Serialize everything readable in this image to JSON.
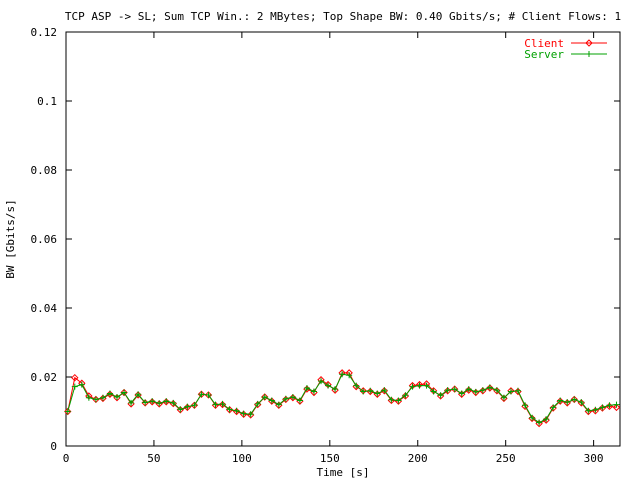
{
  "chart_data": {
    "type": "line",
    "title": "TCP ASP -> SL; Sum TCP Win.: 2 MBytes; Top Shape BW: 0.40 Gbits/s; # Client Flows: 1",
    "xlabel": "Time [s]",
    "ylabel": "BW [Gbits/s]",
    "xlim": [
      0,
      315
    ],
    "ylim": [
      0,
      0.12
    ],
    "xticks": [
      0,
      50,
      100,
      150,
      200,
      250,
      300
    ],
    "yticks": [
      0,
      0.02,
      0.04,
      0.06,
      0.08,
      0.1,
      0.12
    ],
    "xtick_labels": [
      "0",
      "50",
      "100",
      "150",
      "200",
      "250",
      "300"
    ],
    "ytick_labels": [
      "0",
      "0.02",
      "0.04",
      "0.06",
      "0.08",
      "0.1",
      "0.12"
    ],
    "legend_position": "top-right",
    "grid": false,
    "x": [
      1,
      5,
      9,
      13,
      17,
      21,
      25,
      29,
      33,
      37,
      41,
      45,
      49,
      53,
      57,
      61,
      65,
      69,
      73,
      77,
      81,
      85,
      89,
      93,
      97,
      101,
      105,
      109,
      113,
      117,
      121,
      125,
      129,
      133,
      137,
      141,
      145,
      149,
      153,
      157,
      161,
      165,
      169,
      173,
      177,
      181,
      185,
      189,
      193,
      197,
      201,
      205,
      209,
      213,
      217,
      221,
      225,
      229,
      233,
      237,
      241,
      245,
      249,
      253,
      257,
      261,
      265,
      269,
      273,
      277,
      281,
      285,
      289,
      293,
      297,
      301,
      305,
      309,
      313
    ],
    "series": [
      {
        "name": "Client",
        "color": "#ff0000",
        "marker": "diamond",
        "values": [
          0.01,
          0.0198,
          0.0182,
          0.0145,
          0.0135,
          0.0138,
          0.015,
          0.014,
          0.0155,
          0.0122,
          0.0148,
          0.0125,
          0.0128,
          0.0122,
          0.0128,
          0.0123,
          0.0105,
          0.0112,
          0.0118,
          0.015,
          0.0148,
          0.0118,
          0.012,
          0.0105,
          0.01,
          0.0092,
          0.009,
          0.012,
          0.0142,
          0.013,
          0.0118,
          0.0135,
          0.014,
          0.013,
          0.0165,
          0.0155,
          0.0192,
          0.0178,
          0.0162,
          0.0212,
          0.0212,
          0.0172,
          0.016,
          0.0158,
          0.015,
          0.016,
          0.0132,
          0.013,
          0.0145,
          0.0175,
          0.0178,
          0.018,
          0.016,
          0.0145,
          0.016,
          0.0165,
          0.015,
          0.0162,
          0.0155,
          0.016,
          0.0168,
          0.016,
          0.0138,
          0.016,
          0.0158,
          0.0115,
          0.008,
          0.0065,
          0.0075,
          0.011,
          0.013,
          0.0125,
          0.0135,
          0.0125,
          0.01,
          0.0102,
          0.011,
          0.0115,
          0.0112
        ]
      },
      {
        "name": "Server",
        "color": "#00a000",
        "marker": "plus",
        "values": [
          0.01,
          0.0172,
          0.0178,
          0.014,
          0.0135,
          0.014,
          0.0152,
          0.0142,
          0.0155,
          0.0125,
          0.015,
          0.0126,
          0.013,
          0.0124,
          0.013,
          0.0125,
          0.0106,
          0.0114,
          0.0118,
          0.015,
          0.0148,
          0.012,
          0.0122,
          0.0106,
          0.0102,
          0.0094,
          0.0092,
          0.0122,
          0.0142,
          0.0132,
          0.012,
          0.0137,
          0.0142,
          0.0132,
          0.0168,
          0.0158,
          0.0188,
          0.0175,
          0.0165,
          0.0208,
          0.0205,
          0.0175,
          0.0158,
          0.016,
          0.0152,
          0.0162,
          0.0134,
          0.0132,
          0.0147,
          0.0172,
          0.0175,
          0.0175,
          0.0158,
          0.0147,
          0.0162,
          0.0165,
          0.0152,
          0.0165,
          0.0157,
          0.0162,
          0.017,
          0.0162,
          0.014,
          0.0158,
          0.016,
          0.0118,
          0.0082,
          0.0068,
          0.0078,
          0.0112,
          0.0132,
          0.0127,
          0.0135,
          0.0127,
          0.0102,
          0.0105,
          0.0112,
          0.0118,
          0.012
        ]
      }
    ]
  }
}
